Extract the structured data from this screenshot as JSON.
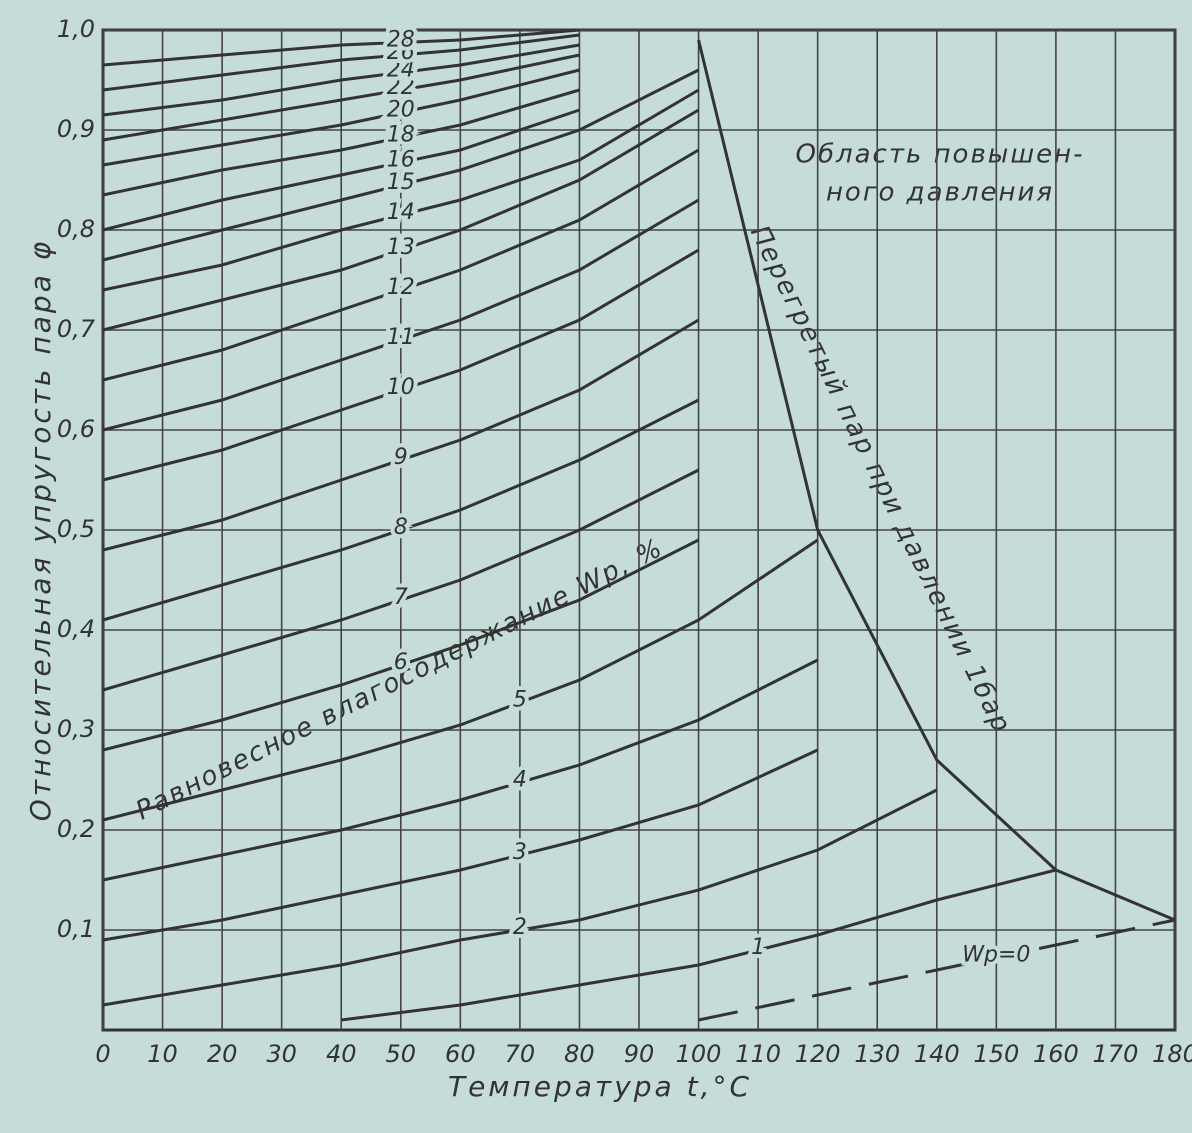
{
  "chart_data": {
    "type": "line",
    "xlabel": "Температура t,°C",
    "ylabel": "Относительная упругость пара φ",
    "annotations": [
      "Область повышен-",
      "ного давления",
      "Равновесное влагосодержание Wp, %",
      "Перегретый пар при давлении 1бар"
    ],
    "x": [
      0,
      20,
      40,
      60,
      80,
      100,
      120,
      140,
      160,
      180
    ],
    "xlim": [
      0,
      180
    ],
    "xticks": [
      0,
      10,
      20,
      30,
      40,
      50,
      60,
      70,
      80,
      90,
      100,
      110,
      120,
      130,
      140,
      150,
      160,
      170,
      180
    ],
    "ylim": [
      0,
      1.0
    ],
    "yticks": [
      {
        "value": 0.1,
        "label": "0,1"
      },
      {
        "value": 0.2,
        "label": "0,2"
      },
      {
        "value": 0.3,
        "label": "0,3"
      },
      {
        "value": 0.4,
        "label": "0,4"
      },
      {
        "value": 0.5,
        "label": "0,5"
      },
      {
        "value": 0.6,
        "label": "0,6"
      },
      {
        "value": 0.7,
        "label": "0,7"
      },
      {
        "value": 0.8,
        "label": "0,8"
      },
      {
        "value": 0.9,
        "label": "0,9"
      },
      {
        "value": 1.0,
        "label": "1,0"
      }
    ],
    "grid": true,
    "color": "#333333",
    "series": [
      {
        "values": [
          null,
          null,
          null,
          null,
          null,
          0.99,
          0.5,
          0.27,
          0.16,
          0.11
        ]
      },
      {
        "name": "Wp=0",
        "dashed": true,
        "values": [
          null,
          null,
          null,
          null,
          null,
          0.01,
          0.035,
          0.06,
          0.085,
          0.11
        ]
      },
      {
        "name": "1",
        "values": [
          null,
          null,
          0.01,
          0.025,
          0.045,
          0.065,
          0.095,
          0.13,
          0.16,
          null
        ]
      },
      {
        "name": "2",
        "values": [
          0.025,
          0.045,
          0.065,
          0.09,
          0.11,
          0.14,
          0.18,
          0.24,
          null,
          null
        ]
      },
      {
        "name": "3",
        "values": [
          0.09,
          0.11,
          0.135,
          0.16,
          0.19,
          0.225,
          0.28,
          null,
          null,
          null
        ]
      },
      {
        "name": "4",
        "values": [
          0.15,
          0.175,
          0.2,
          0.23,
          0.265,
          0.31,
          0.37,
          null,
          null,
          null
        ]
      },
      {
        "name": "5",
        "values": [
          0.21,
          0.24,
          0.27,
          0.305,
          0.35,
          0.41,
          0.49,
          null,
          null,
          null
        ]
      },
      {
        "name": "6",
        "values": [
          0.28,
          0.31,
          0.345,
          0.385,
          0.43,
          0.49,
          null,
          null,
          null,
          null
        ]
      },
      {
        "name": "7",
        "values": [
          0.34,
          0.375,
          0.41,
          0.45,
          0.5,
          0.56,
          null,
          null,
          null,
          null
        ]
      },
      {
        "name": "8",
        "values": [
          0.41,
          0.445,
          0.48,
          0.52,
          0.57,
          0.63,
          null,
          null,
          null,
          null
        ]
      },
      {
        "name": "9",
        "values": [
          0.48,
          0.51,
          0.55,
          0.59,
          0.64,
          0.71,
          null,
          null,
          null,
          null
        ]
      },
      {
        "name": "10",
        "values": [
          0.55,
          0.58,
          0.62,
          0.66,
          0.71,
          0.78,
          null,
          null,
          null,
          null
        ]
      },
      {
        "name": "11",
        "values": [
          0.6,
          0.63,
          0.67,
          0.71,
          0.76,
          0.83,
          null,
          null,
          null,
          null
        ]
      },
      {
        "name": "12",
        "values": [
          0.65,
          0.68,
          0.72,
          0.76,
          0.81,
          0.88,
          null,
          null,
          null,
          null
        ]
      },
      {
        "name": "13",
        "values": [
          0.7,
          0.73,
          0.76,
          0.8,
          0.85,
          0.92,
          null,
          null,
          null,
          null
        ]
      },
      {
        "name": "14",
        "values": [
          0.74,
          0.765,
          0.8,
          0.83,
          0.87,
          0.94,
          null,
          null,
          null,
          null
        ]
      },
      {
        "name": "15",
        "values": [
          0.77,
          0.8,
          0.83,
          0.86,
          0.9,
          0.96,
          null,
          null,
          null,
          null
        ]
      },
      {
        "name": "16",
        "values": [
          0.8,
          0.83,
          0.855,
          0.88,
          0.92,
          null,
          null,
          null,
          null,
          null
        ]
      },
      {
        "name": "18",
        "values": [
          0.835,
          0.86,
          0.88,
          0.905,
          0.94,
          null,
          null,
          null,
          null,
          null
        ]
      },
      {
        "name": "20",
        "values": [
          0.865,
          0.885,
          0.905,
          0.93,
          0.96,
          null,
          null,
          null,
          null,
          null
        ]
      },
      {
        "name": "22",
        "values": [
          0.89,
          0.91,
          0.93,
          0.95,
          0.975,
          null,
          null,
          null,
          null,
          null
        ]
      },
      {
        "name": "24",
        "values": [
          0.915,
          0.93,
          0.95,
          0.965,
          0.985,
          null,
          null,
          null,
          null,
          null
        ]
      },
      {
        "name": "26",
        "values": [
          0.94,
          0.955,
          0.97,
          0.98,
          0.995,
          null,
          null,
          null,
          null,
          null
        ]
      },
      {
        "name": "28",
        "values": [
          0.965,
          0.975,
          0.985,
          0.99,
          1.0,
          null,
          null,
          null,
          null,
          null
        ]
      }
    ]
  }
}
